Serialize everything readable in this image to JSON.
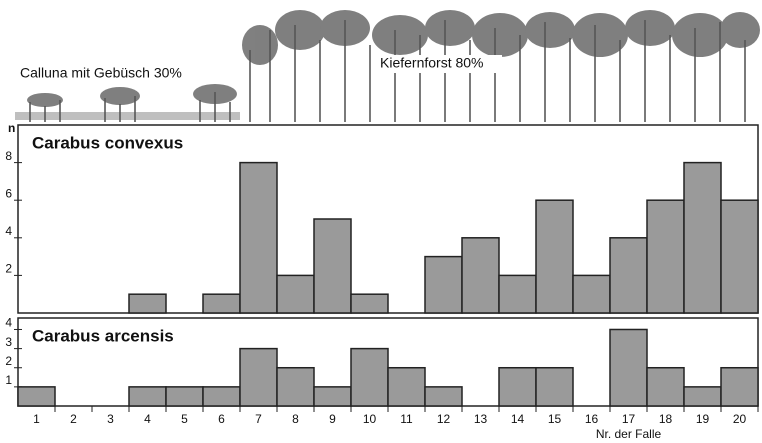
{
  "vegetation": {
    "heath": "Calluna mit Gebüsch 30%",
    "forest": "Kiefernforst 80%"
  },
  "chart_data": [
    {
      "type": "bar",
      "title": "Carabus convexus",
      "ylabel": "n",
      "values": [
        0,
        0,
        0,
        1,
        0,
        1,
        8,
        2,
        5,
        1,
        0,
        3,
        4,
        2,
        6,
        2,
        4,
        6,
        8,
        6
      ],
      "color": "#9a9a9a",
      "ylim": [
        0,
        10
      ],
      "yticks": [
        2,
        4,
        6,
        8
      ]
    },
    {
      "type": "bar",
      "title": "Carabus arcensis",
      "xlabel": "Nr. der Falle",
      "categories": [
        "1",
        "2",
        "3",
        "4",
        "5",
        "6",
        "7",
        "8",
        "9",
        "10",
        "11",
        "12",
        "13",
        "14",
        "15",
        "16",
        "17",
        "18",
        "19",
        "20"
      ],
      "values": [
        1,
        0,
        0,
        1,
        1,
        1,
        3,
        2,
        1,
        3,
        2,
        1,
        0,
        2,
        2,
        0,
        4,
        2,
        1,
        2
      ],
      "color": "#9a9a9a",
      "ylim": [
        0,
        4.6
      ],
      "yticks": [
        1,
        2,
        3,
        4
      ]
    }
  ]
}
